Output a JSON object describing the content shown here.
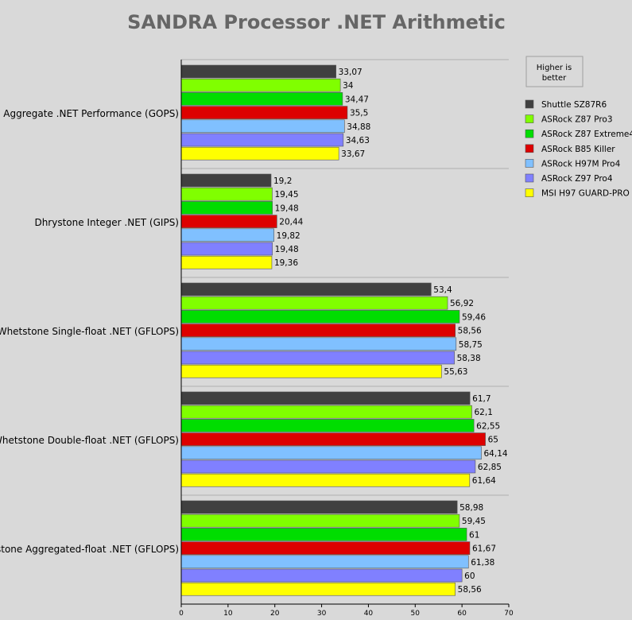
{
  "chart_data": {
    "type": "bar",
    "orientation": "horizontal",
    "title": "SANDRA Processor .NET Arithmetic",
    "note": [
      "Higher is",
      "better"
    ],
    "categories": [
      "Aggregate .NET Performance (GOPS)",
      "Dhrystone Integer .NET (GIPS)",
      "Whetstone Single-float .NET (GFLOPS)",
      "Whetstone Double-float .NET (GFLOPS)",
      "Whetstone Aggregated-float .NET (GFLOPS)"
    ],
    "series": [
      {
        "name": "Shuttle SZ87R6",
        "color": "#404040",
        "values": [
          33.07,
          19.2,
          53.4,
          61.7,
          58.98
        ],
        "labels": [
          "33,07",
          "19,2",
          "53,4",
          "61,7",
          "58,98"
        ]
      },
      {
        "name": "ASRock Z87 Pro3",
        "color": "#80ff00",
        "values": [
          34,
          19.45,
          56.92,
          62.1,
          59.45
        ],
        "labels": [
          "34",
          "19,45",
          "56,92",
          "62,1",
          "59,45"
        ]
      },
      {
        "name": "ASRock Z87 Extreme4",
        "color": "#00dd00",
        "values": [
          34.47,
          19.48,
          59.46,
          62.55,
          61
        ],
        "labels": [
          "34,47",
          "19,48",
          "59,46",
          "62,55",
          "61"
        ]
      },
      {
        "name": "ASRock B85 Killer",
        "color": "#dd0000",
        "values": [
          35.5,
          20.44,
          58.56,
          65,
          61.67
        ],
        "labels": [
          "35,5",
          "20,44",
          "58,56",
          "65",
          "61,67"
        ]
      },
      {
        "name": "ASRock H97M Pro4",
        "color": "#80c0ff",
        "values": [
          34.88,
          19.82,
          58.75,
          64.14,
          61.38
        ],
        "labels": [
          "34,88",
          "19,82",
          "58,75",
          "64,14",
          "61,38"
        ]
      },
      {
        "name": "ASRock Z97 Pro4",
        "color": "#8080ff",
        "values": [
          34.63,
          19.48,
          58.38,
          62.85,
          60
        ],
        "labels": [
          "34,63",
          "19,48",
          "58,38",
          "62,85",
          "60"
        ]
      },
      {
        "name": "MSI H97 GUARD-PRO",
        "color": "#ffff00",
        "values": [
          33.67,
          19.36,
          55.63,
          61.64,
          58.56
        ],
        "labels": [
          "33,67",
          "19,36",
          "55,63",
          "61,64",
          "58,56"
        ]
      }
    ],
    "xlim": [
      0,
      70
    ],
    "xticks": [
      0,
      10,
      20,
      30,
      40,
      50,
      60,
      70
    ],
    "xtick_labels": [
      "0",
      "10",
      "20",
      "30",
      "40",
      "50",
      "60",
      "70"
    ],
    "legend_position": "right",
    "grid": false
  }
}
